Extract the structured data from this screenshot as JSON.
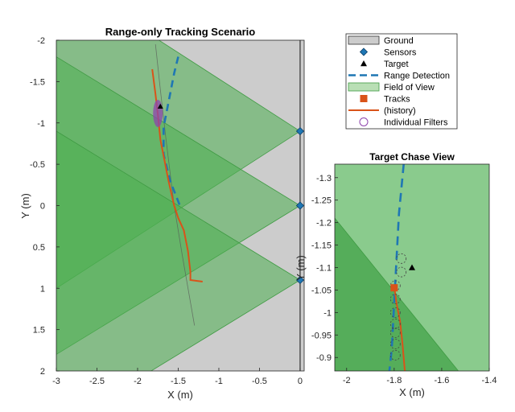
{
  "colors": {
    "ground": "#cccccc",
    "fov": "#4caf50",
    "sensor": "#1f77b4",
    "range": "#1f77b4",
    "track": "#d95319",
    "filter": "#8e44ad"
  },
  "chart_data": [
    {
      "type": "scatter",
      "title": "Range-only Tracking Scenario",
      "xlabel": "X (m)",
      "ylabel": "Y (m)",
      "xlim": [
        -3,
        0.05
      ],
      "ylim": [
        -2,
        2
      ],
      "y_reversed": true,
      "xticks": [
        "-3",
        "-2.5",
        "-2",
        "-1.5",
        "-1",
        "-0.5",
        "0"
      ],
      "yticks": [
        "-2",
        "-1.5",
        "-1",
        "-0.5",
        "0",
        "0.5",
        "1",
        "1.5",
        "2"
      ],
      "ground_x": 0,
      "sensors": [
        {
          "x": 0,
          "y": -0.9
        },
        {
          "x": 0,
          "y": 0
        },
        {
          "x": 0,
          "y": 0.9
        }
      ],
      "fov_wedges": [
        {
          "apex": [
            0,
            -0.9
          ],
          "ends": [
            [
              -3,
              -2.8
            ],
            [
              -3,
              1.0
            ]
          ]
        },
        {
          "apex": [
            0,
            0
          ],
          "ends": [
            [
              -3,
              -1.8
            ],
            [
              -3,
              1.8
            ]
          ]
        },
        {
          "apex": [
            0,
            0.9
          ],
          "ends": [
            [
              -3,
              -0.9
            ],
            [
              -3,
              2.7
            ]
          ]
        }
      ],
      "range_detection": [
        [
          -1.5,
          -1.8
        ],
        [
          -1.55,
          -1.6
        ],
        [
          -1.62,
          -1.25
        ],
        [
          -1.68,
          -0.95
        ],
        [
          -1.68,
          -0.62
        ],
        [
          -1.6,
          -0.3
        ],
        [
          -1.48,
          0.0
        ]
      ],
      "target": {
        "x": -1.72,
        "y": -1.2
      },
      "track_history": [
        [
          -1.82,
          -1.65
        ],
        [
          -1.78,
          -1.35
        ],
        [
          -1.75,
          -1.1
        ],
        [
          -1.72,
          -0.8
        ],
        [
          -1.62,
          -0.3
        ],
        [
          -1.55,
          0.0
        ],
        [
          -1.5,
          0.15
        ],
        [
          -1.43,
          0.3
        ],
        [
          -1.38,
          0.55
        ],
        [
          -1.35,
          0.8
        ],
        [
          -1.35,
          0.9
        ],
        [
          -1.2,
          0.92
        ]
      ],
      "target_truth": [
        [
          -1.78,
          -1.95
        ],
        [
          -1.72,
          -1.4
        ],
        [
          -1.65,
          -0.8
        ],
        [
          -1.55,
          0.0
        ],
        [
          -1.45,
          0.6
        ],
        [
          -1.3,
          1.45
        ]
      ],
      "filters_cluster": {
        "x": -1.75,
        "y_from": -1.28,
        "y_to": -0.95
      }
    },
    {
      "type": "scatter",
      "title": "Target Chase View",
      "xlabel": "X (m)",
      "ylabel": "Y (m)",
      "xlim": [
        -2.05,
        -1.4
      ],
      "ylim": [
        -1.33,
        -0.87
      ],
      "y_reversed": true,
      "xticks": [
        "-2",
        "-1.8",
        "-1.6",
        "-1.4"
      ],
      "yticks": [
        "-1.3",
        "-1.25",
        "-1.2",
        "-1.15",
        "-1.1",
        "-1.05",
        "-1",
        "-0.95",
        "-0.9"
      ],
      "range_detection": [
        [
          -1.76,
          -1.33
        ],
        [
          -1.78,
          -1.22
        ],
        [
          -1.79,
          -1.12
        ],
        [
          -1.8,
          -1.02
        ],
        [
          -1.81,
          -0.92
        ],
        [
          -1.82,
          -0.87
        ]
      ],
      "target": {
        "x": -1.725,
        "y": -1.1
      },
      "track_history": [
        [
          -1.8,
          -1.06
        ],
        [
          -1.79,
          -1.02
        ],
        [
          -1.775,
          -0.98
        ],
        [
          -1.765,
          -0.93
        ],
        [
          -1.755,
          -0.87
        ]
      ],
      "track": {
        "x": -1.8,
        "y": -1.055
      },
      "filters": [
        {
          "x": -1.77,
          "y": -1.12
        },
        {
          "x": -1.77,
          "y": -1.09
        },
        {
          "x": -1.795,
          "y": -1.06
        },
        {
          "x": -1.795,
          "y": -1.03
        },
        {
          "x": -1.795,
          "y": -1.0
        },
        {
          "x": -1.795,
          "y": -0.975
        },
        {
          "x": -1.795,
          "y": -0.955
        },
        {
          "x": -1.795,
          "y": -0.93
        },
        {
          "x": -1.795,
          "y": -0.905
        }
      ],
      "fov_edge": [
        [
          -2.05,
          -1.21
        ],
        [
          -1.53,
          -0.87
        ]
      ]
    }
  ],
  "legend": {
    "items": [
      {
        "label": "Ground",
        "kind": "ground"
      },
      {
        "label": "Sensors",
        "kind": "sensor"
      },
      {
        "label": "Target",
        "kind": "target"
      },
      {
        "label": "Range Detection",
        "kind": "range"
      },
      {
        "label": "Field of View",
        "kind": "fov"
      },
      {
        "label": "Tracks",
        "kind": "track"
      },
      {
        "label": "(history)",
        "kind": "history"
      },
      {
        "label": "Individual Filters",
        "kind": "filter"
      }
    ]
  }
}
